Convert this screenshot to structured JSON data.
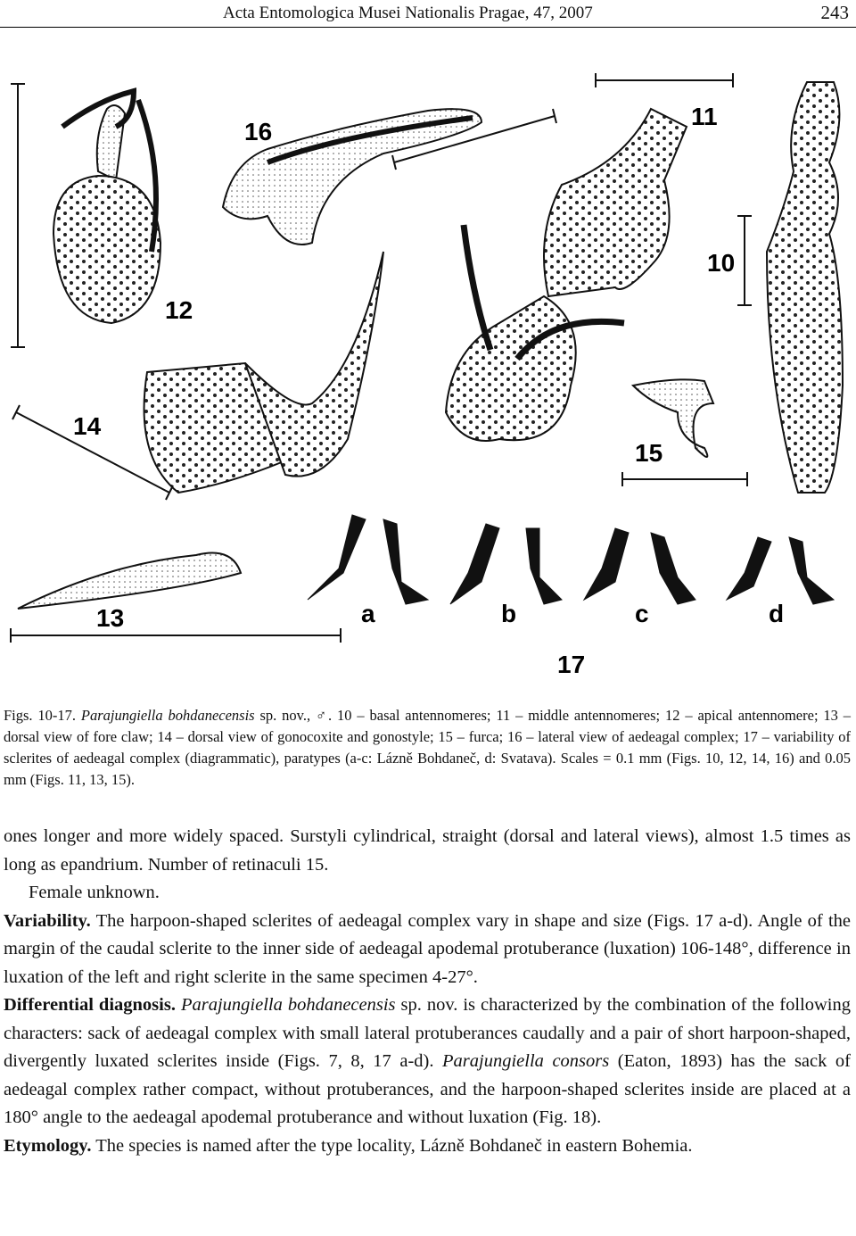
{
  "header": {
    "journal": "Acta Entomologica Musei Nationalis Pragae, 47, 2007",
    "page": "243"
  },
  "figure": {
    "labels": [
      "16",
      "11",
      "10",
      "12",
      "14",
      "15",
      "13",
      "a",
      "b",
      "c",
      "d",
      "17"
    ]
  },
  "caption": [
    {
      "t": "Figs. 10-17. "
    },
    {
      "t": "Parajungiella bohdanecensis",
      "f": "i"
    },
    {
      "t": " sp. nov., ♂. 10 – basal antennomeres; 11 – middle antennomeres; 12 – apical antennomere; 13 – dorsal view of fore claw; 14 – dorsal view of gonocoxite and gonostyle; 15 – furca; 16 – lateral view of aedeagal complex; 17 – variability of sclerites of aedeagal complex (diagrammatic), paratypes (a-c: Lázně Bohdaneč, d: Svatava). Scales = 0.1 mm (Figs. 10, 12, 14, 16) and 0.05 mm (Figs. 11, 13, 15)."
    }
  ],
  "body": [
    [
      {
        "t": "ones longer and more widely spaced. Surstyli cylindrical, straight (dorsal and lateral views), almost 1.5 times as long as epandrium. Number of retinaculi 15."
      }
    ],
    [
      {
        "t": "Female unknown."
      }
    ],
    [
      {
        "t": "Variability.",
        "f": "b"
      },
      {
        "t": " The harpoon-shaped sclerites of aedeagal complex vary in shape and size (Figs. 17 a-d). Angle of the margin of the caudal sclerite to the inner side of aedeagal apodemal protuberance (luxation) 106-148°, difference in luxation of the left and right sclerite in the same specimen 4-27°."
      }
    ],
    [
      {
        "t": "Differential diagnosis.",
        "f": "b"
      },
      {
        "t": " "
      },
      {
        "t": "Parajungiella bohdanecensis",
        "f": "i"
      },
      {
        "t": " sp. nov. is characterized by the combination of the following characters: sack of aedeagal complex with small lateral protuberances caudally and a pair of short harpoon-shaped, divergently luxated sclerites inside (Figs. 7, 8, 17 a-d). "
      },
      {
        "t": "Parajungiella consors",
        "f": "i"
      },
      {
        "t": " (Eaton, 1893) has the sack of aedeagal complex rather compact, without protuberances, and the harpoon-shaped sclerites inside are placed at a 180° angle to the aedeagal apodemal protuberance and without luxation (Fig. 18)."
      }
    ],
    [
      {
        "t": "Etymology.",
        "f": "b"
      },
      {
        "t": " The species is named after the type locality, Lázně Bohdaneč in eastern Bohemia."
      }
    ]
  ]
}
